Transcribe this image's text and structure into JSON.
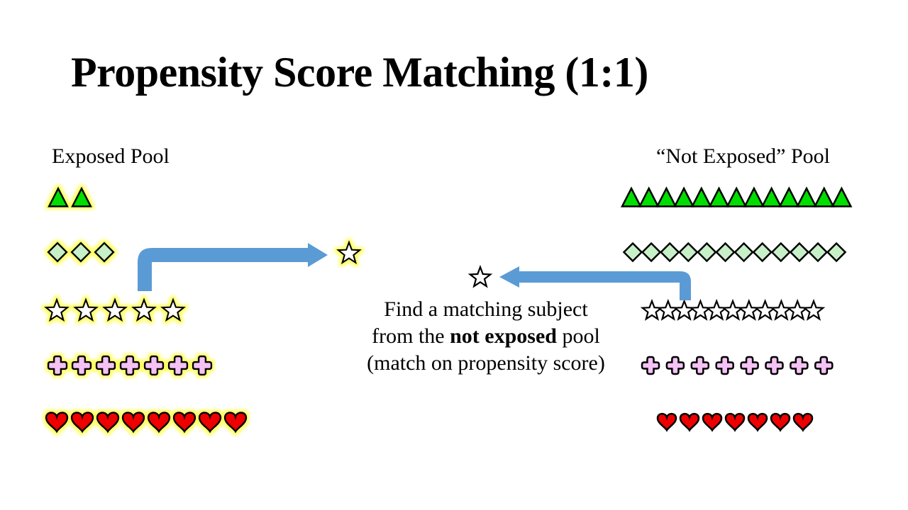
{
  "title": "Propensity Score Matching (1:1)",
  "exposed_pool_label": "Exposed Pool",
  "not_exposed_pool_label": "“Not Exposed” Pool",
  "caption": {
    "line1": "Find a matching subject",
    "line2_before": "from the ",
    "line2_bold": "not exposed",
    "line2_after": " pool",
    "line3": "(match on propensity score)"
  },
  "colors": {
    "triangle": "#00dd00",
    "diamond": "#c8f0c8",
    "star": "#ffffff",
    "cross": "#f4c2f4",
    "heart": "#ee0000",
    "glow": "#ffff66",
    "arrow": "#5b9bd5",
    "outline": "#000000"
  },
  "exposed_pool": [
    {
      "shape": "triangle",
      "count": 2
    },
    {
      "shape": "diamond",
      "count": 3
    },
    {
      "shape": "star",
      "count": 5
    },
    {
      "shape": "cross",
      "count": 7
    },
    {
      "shape": "heart",
      "count": 8
    }
  ],
  "not_exposed_pool": [
    {
      "shape": "triangle",
      "count": 13
    },
    {
      "shape": "diamond",
      "count": 12
    },
    {
      "shape": "star",
      "count": 11
    },
    {
      "shape": "cross",
      "count": 8
    },
    {
      "shape": "heart",
      "count": 7
    }
  ]
}
